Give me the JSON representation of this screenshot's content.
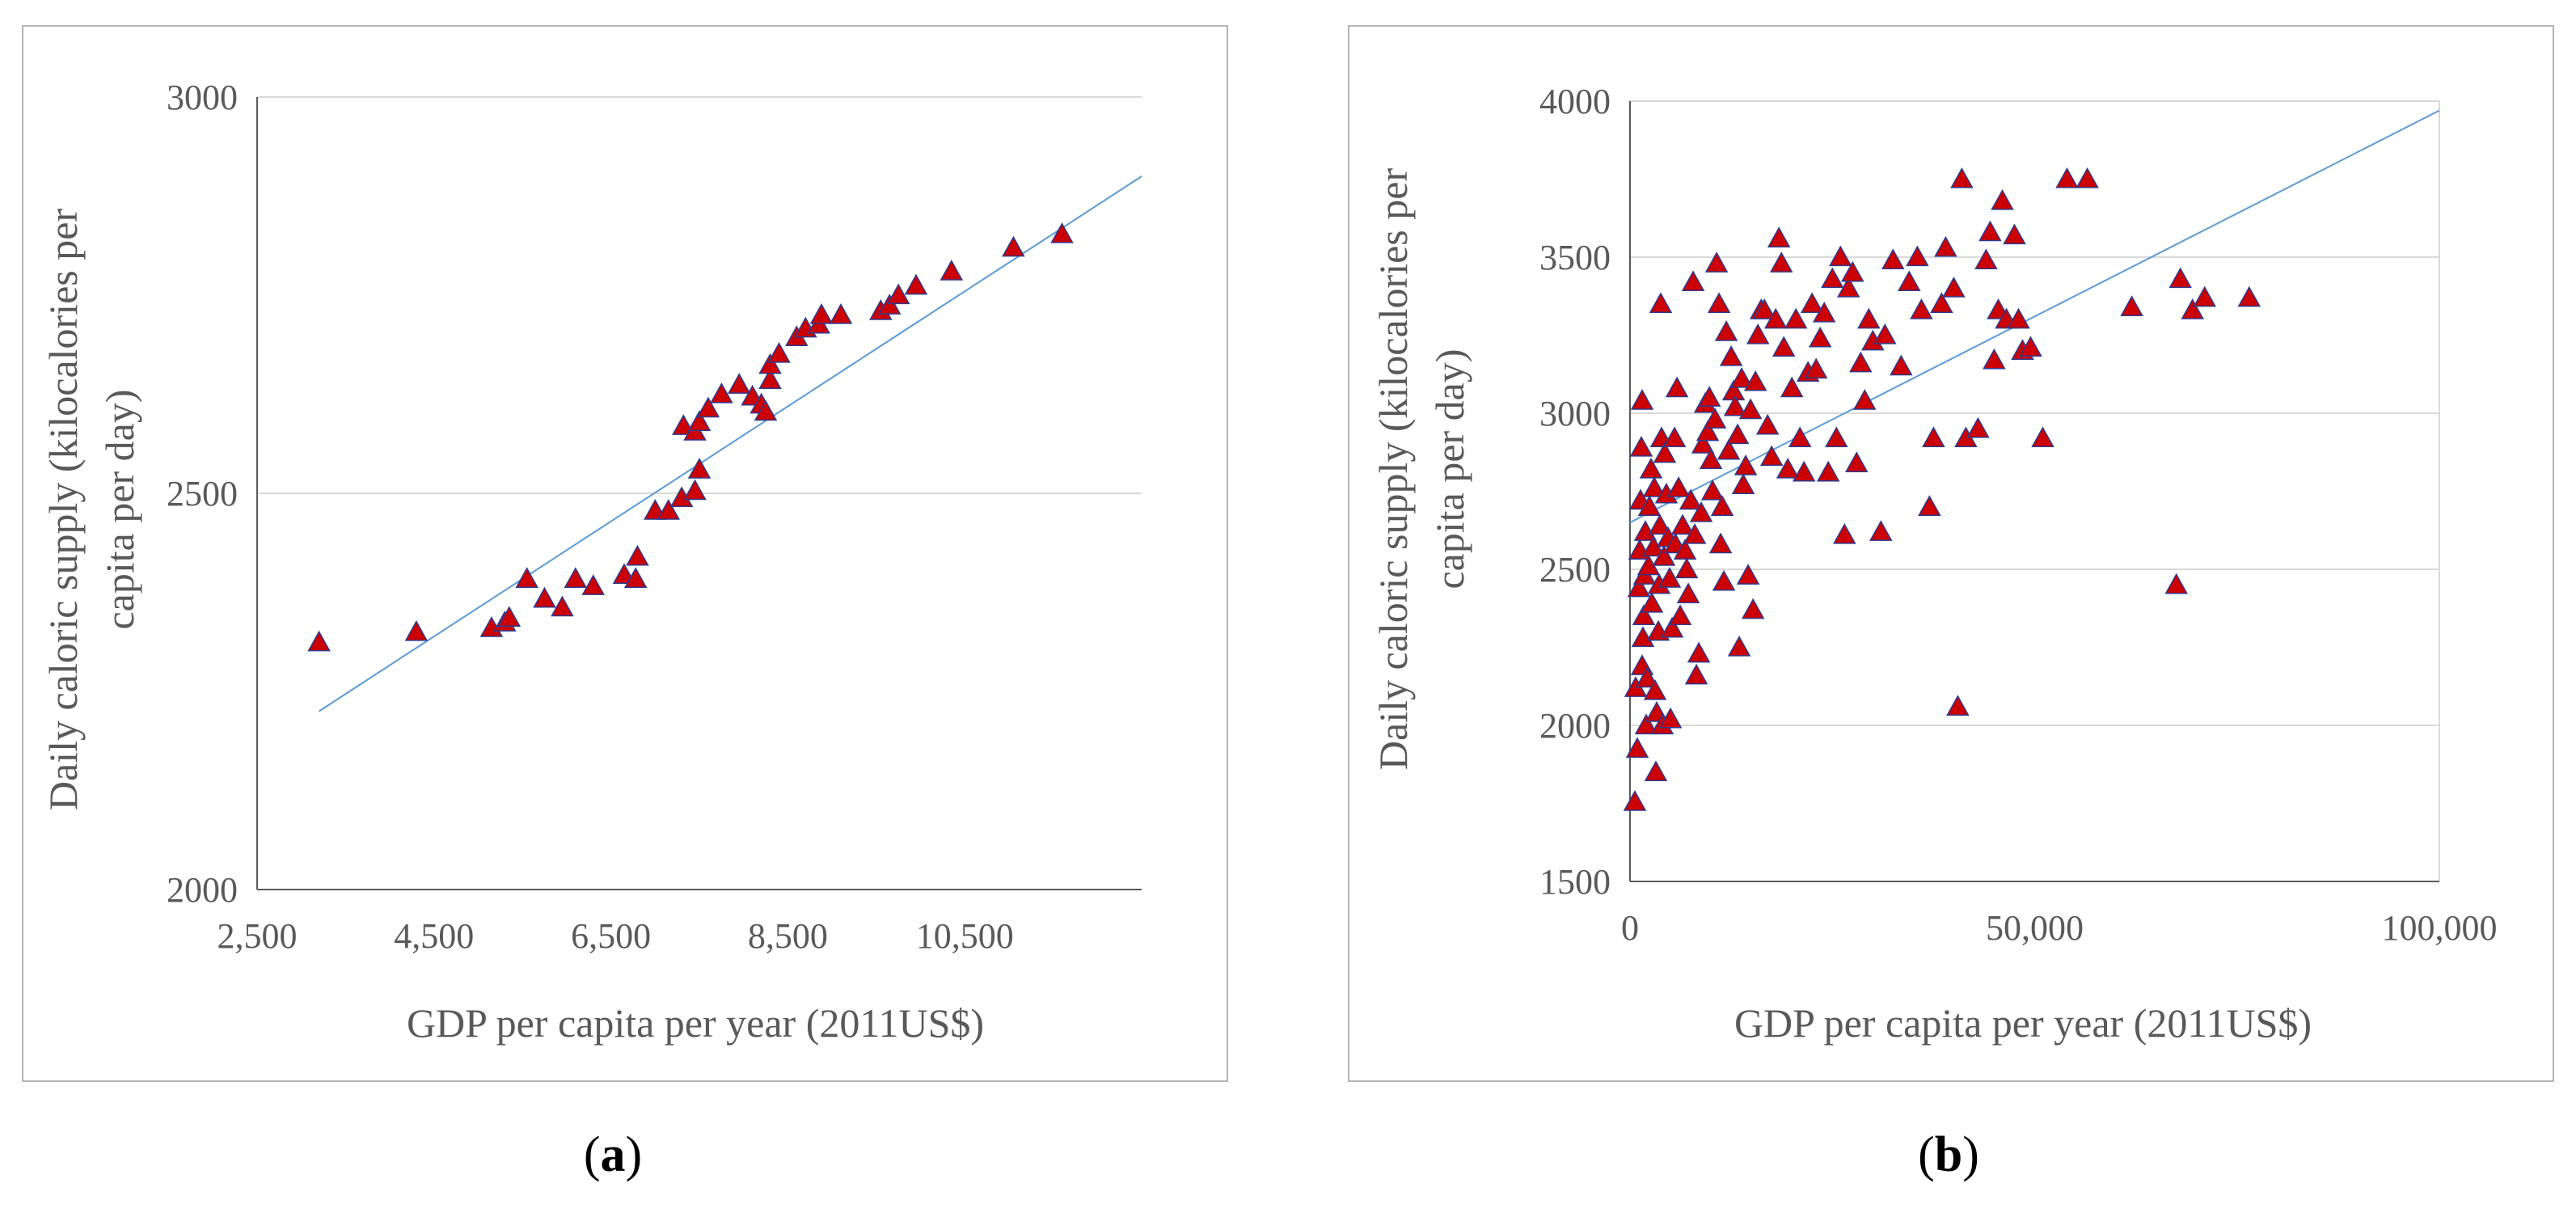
{
  "colors": {
    "marker_fill": "#cc0000",
    "marker_edge": "#2e3b8f",
    "trendline": "#5b9bd5",
    "gridline": "#d9d9d9",
    "axis_text": "#595959"
  },
  "panels": {
    "a": {
      "caption_open": "(",
      "caption_letter": "a",
      "caption_close": ")"
    },
    "b": {
      "caption_open": "(",
      "caption_letter": "b",
      "caption_close": ")"
    }
  },
  "chart_data": [
    {
      "id": "a",
      "type": "scatter",
      "xlabel": "GDP per capita per year (2011US$)",
      "ylabel_lines": [
        "Daily caloric supply (kilocalories per",
        "capita per day)"
      ],
      "xlim": [
        2500,
        12500
      ],
      "ylim": [
        2000,
        3000
      ],
      "xticks": [
        2500,
        4500,
        6500,
        8500,
        10500
      ],
      "xtick_labels": [
        "2,500",
        "4,500",
        "6,500",
        "8,500",
        "10,500"
      ],
      "yticks": [
        2000,
        2500,
        3000
      ],
      "ytick_labels": [
        "2000",
        "2500",
        "3000"
      ],
      "grid_y": true,
      "trendline": {
        "x": [
          3200,
          12500
        ],
        "y": [
          2225,
          2900
        ]
      },
      "points": [
        [
          3200,
          2312
        ],
        [
          4300,
          2325
        ],
        [
          5150,
          2330
        ],
        [
          5300,
          2337
        ],
        [
          5350,
          2343
        ],
        [
          5550,
          2392
        ],
        [
          5750,
          2367
        ],
        [
          5950,
          2356
        ],
        [
          6100,
          2392
        ],
        [
          6300,
          2383
        ],
        [
          6650,
          2397
        ],
        [
          6780,
          2392
        ],
        [
          6800,
          2420
        ],
        [
          7000,
          2478
        ],
        [
          7150,
          2478
        ],
        [
          7300,
          2494
        ],
        [
          7320,
          2585
        ],
        [
          7450,
          2578
        ],
        [
          7450,
          2503
        ],
        [
          7500,
          2530
        ],
        [
          7500,
          2590
        ],
        [
          7600,
          2607
        ],
        [
          7750,
          2625
        ],
        [
          7950,
          2637
        ],
        [
          8100,
          2622
        ],
        [
          8200,
          2612
        ],
        [
          8250,
          2603
        ],
        [
          8300,
          2643
        ],
        [
          8300,
          2662
        ],
        [
          8400,
          2676
        ],
        [
          8600,
          2697
        ],
        [
          8700,
          2708
        ],
        [
          8850,
          2713
        ],
        [
          8880,
          2725
        ],
        [
          9100,
          2725
        ],
        [
          9550,
          2730
        ],
        [
          9650,
          2737
        ],
        [
          9750,
          2750
        ],
        [
          9950,
          2762
        ],
        [
          10350,
          2780
        ],
        [
          11050,
          2810
        ],
        [
          11600,
          2827
        ]
      ]
    },
    {
      "id": "b",
      "type": "scatter",
      "xlabel": "GDP per capita per year (2011US$)",
      "ylabel_lines": [
        "Daily caloric supply (kilocalories per",
        "capita per day)"
      ],
      "xlim": [
        0,
        100000
      ],
      "ylim": [
        1500,
        4000
      ],
      "xticks": [
        0,
        50000,
        100000
      ],
      "xtick_labels": [
        "0",
        "50,000",
        "100,000"
      ],
      "yticks": [
        1500,
        2000,
        2500,
        3000,
        3500,
        4000
      ],
      "ytick_labels": [
        "1500",
        "2000",
        "2500",
        "3000",
        "3500",
        "4000"
      ],
      "grid_y": true,
      "grid_x_right_border": true,
      "trendline": {
        "x": [
          0,
          100000
        ],
        "y": [
          2650,
          3970
        ]
      },
      "points": [
        [
          600,
          1755
        ],
        [
          700,
          2120
        ],
        [
          900,
          1925
        ],
        [
          1100,
          2440
        ],
        [
          1200,
          2560
        ],
        [
          1300,
          2720
        ],
        [
          1400,
          2890
        ],
        [
          1500,
          3040
        ],
        [
          1500,
          2190
        ],
        [
          1600,
          2280
        ],
        [
          1700,
          2350
        ],
        [
          1800,
          2480
        ],
        [
          1900,
          2620
        ],
        [
          2000,
          2000
        ],
        [
          2100,
          2150
        ],
        [
          2300,
          2510
        ],
        [
          2400,
          2700
        ],
        [
          2600,
          2820
        ],
        [
          2700,
          2390
        ],
        [
          2900,
          2570
        ],
        [
          3000,
          2760
        ],
        [
          3100,
          2110
        ],
        [
          3200,
          1850
        ],
        [
          3300,
          2040
        ],
        [
          3500,
          2300
        ],
        [
          3600,
          2450
        ],
        [
          3700,
          2640
        ],
        [
          3800,
          3350
        ],
        [
          3900,
          2920
        ],
        [
          4000,
          2000
        ],
        [
          4200,
          2540
        ],
        [
          4300,
          2870
        ],
        [
          4500,
          2740
        ],
        [
          4700,
          2600
        ],
        [
          4900,
          2470
        ],
        [
          5000,
          2020
        ],
        [
          5200,
          2310
        ],
        [
          5500,
          2920
        ],
        [
          5600,
          2580
        ],
        [
          5800,
          3080
        ],
        [
          6000,
          2760
        ],
        [
          6200,
          2350
        ],
        [
          6500,
          2640
        ],
        [
          6800,
          2560
        ],
        [
          7000,
          2500
        ],
        [
          7200,
          2420
        ],
        [
          7500,
          2720
        ],
        [
          7800,
          3420
        ],
        [
          8000,
          2610
        ],
        [
          8200,
          2160
        ],
        [
          8500,
          2230
        ],
        [
          8800,
          2680
        ],
        [
          9000,
          2900
        ],
        [
          9300,
          3030
        ],
        [
          9600,
          2940
        ],
        [
          9800,
          3050
        ],
        [
          10000,
          2850
        ],
        [
          10200,
          2750
        ],
        [
          10500,
          2980
        ],
        [
          10700,
          3480
        ],
        [
          11000,
          3350
        ],
        [
          11200,
          2580
        ],
        [
          11400,
          2700
        ],
        [
          11600,
          2460
        ],
        [
          11900,
          3260
        ],
        [
          12200,
          2880
        ],
        [
          12500,
          3180
        ],
        [
          12800,
          3070
        ],
        [
          13000,
          3020
        ],
        [
          13300,
          2930
        ],
        [
          13500,
          2250
        ],
        [
          13800,
          3110
        ],
        [
          14000,
          2770
        ],
        [
          14300,
          2830
        ],
        [
          14600,
          2480
        ],
        [
          14900,
          3010
        ],
        [
          15200,
          2370
        ],
        [
          15500,
          3100
        ],
        [
          15800,
          3250
        ],
        [
          16200,
          3330
        ],
        [
          16600,
          3330
        ],
        [
          17000,
          2960
        ],
        [
          17500,
          2860
        ],
        [
          18000,
          3300
        ],
        [
          18400,
          3560
        ],
        [
          18700,
          3480
        ],
        [
          19000,
          3210
        ],
        [
          19500,
          2820
        ],
        [
          20000,
          3080
        ],
        [
          20500,
          3300
        ],
        [
          21000,
          2920
        ],
        [
          21500,
          2810
        ],
        [
          22000,
          3130
        ],
        [
          22500,
          3350
        ],
        [
          23000,
          3140
        ],
        [
          23500,
          3240
        ],
        [
          24000,
          3320
        ],
        [
          24500,
          2810
        ],
        [
          25000,
          3430
        ],
        [
          25500,
          2920
        ],
        [
          26000,
          3500
        ],
        [
          26500,
          2610
        ],
        [
          27000,
          3400
        ],
        [
          27500,
          3450
        ],
        [
          28000,
          2840
        ],
        [
          28500,
          3160
        ],
        [
          29000,
          3040
        ],
        [
          29500,
          3300
        ],
        [
          30000,
          3230
        ],
        [
          31000,
          2620
        ],
        [
          31500,
          3250
        ],
        [
          32500,
          3490
        ],
        [
          33500,
          3150
        ],
        [
          34500,
          3420
        ],
        [
          35500,
          3500
        ],
        [
          36000,
          3330
        ],
        [
          37000,
          2700
        ],
        [
          37500,
          2920
        ],
        [
          38500,
          3350
        ],
        [
          39000,
          3530
        ],
        [
          40000,
          3400
        ],
        [
          40500,
          2060
        ],
        [
          41000,
          3750
        ],
        [
          41500,
          2920
        ],
        [
          43000,
          2950
        ],
        [
          44000,
          3490
        ],
        [
          44500,
          3580
        ],
        [
          45000,
          3170
        ],
        [
          45500,
          3330
        ],
        [
          46000,
          3680
        ],
        [
          46500,
          3300
        ],
        [
          47500,
          3570
        ],
        [
          48000,
          3300
        ],
        [
          48500,
          3200
        ],
        [
          49500,
          3210
        ],
        [
          51000,
          2920
        ],
        [
          54000,
          3750
        ],
        [
          56500,
          3750
        ],
        [
          62000,
          3340
        ],
        [
          67500,
          2450
        ],
        [
          68000,
          3430
        ],
        [
          69500,
          3330
        ],
        [
          71000,
          3370
        ],
        [
          76500,
          3370
        ]
      ]
    }
  ]
}
